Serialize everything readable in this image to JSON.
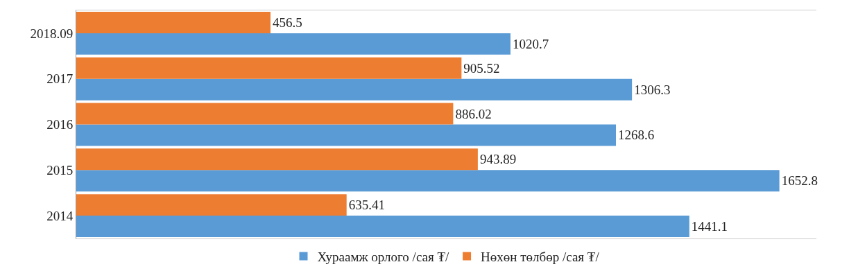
{
  "chart_data": {
    "type": "bar",
    "orientation": "horizontal",
    "categories": [
      "2018.09",
      "2017",
      "2016",
      "2015",
      "2014"
    ],
    "series": [
      {
        "name": "Хураамж орлого /сая ₮/",
        "color": "#5b9bd5",
        "values": [
          1020.7,
          1306.3,
          1268.6,
          1652.8,
          1441.1
        ]
      },
      {
        "name": "Нөхөн төлбөр /сая ₮/",
        "color": "#ed7d31",
        "values": [
          456.5,
          905.52,
          886.02,
          943.89,
          635.41
        ]
      }
    ],
    "data_labels": true,
    "legend": "bottom",
    "grid": false,
    "tick_labels": "y"
  }
}
